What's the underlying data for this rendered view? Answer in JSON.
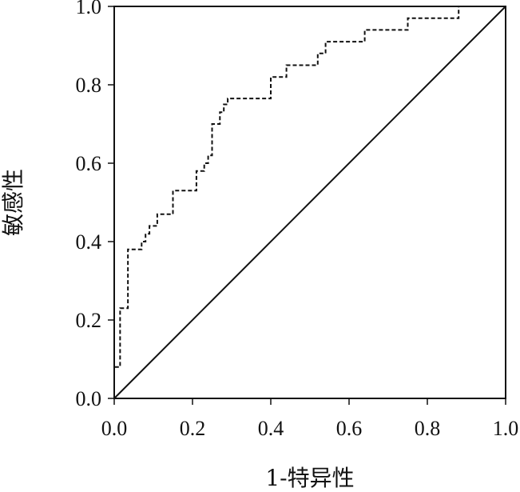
{
  "chart_data": {
    "type": "line",
    "title": "",
    "xlabel": "1-特异性",
    "ylabel": "敏感性",
    "xlim": [
      0,
      1
    ],
    "ylim": [
      0,
      1
    ],
    "grid": false,
    "legend": "none",
    "x_ticks": [
      "0.0",
      "0.2",
      "0.4",
      "0.6",
      "0.8",
      "1.0"
    ],
    "y_ticks": [
      "0.0",
      "0.2",
      "0.4",
      "0.6",
      "0.8",
      "1.0"
    ],
    "series": [
      {
        "style": "dashed",
        "color": "#111111",
        "points": [
          [
            0.0,
            0.0
          ],
          [
            0.0,
            0.08
          ],
          [
            0.015,
            0.08
          ],
          [
            0.015,
            0.23
          ],
          [
            0.035,
            0.23
          ],
          [
            0.035,
            0.38
          ],
          [
            0.07,
            0.38
          ],
          [
            0.07,
            0.4
          ],
          [
            0.08,
            0.4
          ],
          [
            0.08,
            0.42
          ],
          [
            0.09,
            0.42
          ],
          [
            0.09,
            0.44
          ],
          [
            0.11,
            0.44
          ],
          [
            0.11,
            0.47
          ],
          [
            0.15,
            0.47
          ],
          [
            0.15,
            0.53
          ],
          [
            0.21,
            0.53
          ],
          [
            0.21,
            0.58
          ],
          [
            0.23,
            0.58
          ],
          [
            0.23,
            0.6
          ],
          [
            0.24,
            0.6
          ],
          [
            0.24,
            0.62
          ],
          [
            0.25,
            0.62
          ],
          [
            0.25,
            0.7
          ],
          [
            0.27,
            0.7
          ],
          [
            0.27,
            0.73
          ],
          [
            0.28,
            0.73
          ],
          [
            0.28,
            0.75
          ],
          [
            0.29,
            0.75
          ],
          [
            0.29,
            0.765
          ],
          [
            0.4,
            0.765
          ],
          [
            0.4,
            0.82
          ],
          [
            0.44,
            0.82
          ],
          [
            0.44,
            0.85
          ],
          [
            0.52,
            0.85
          ],
          [
            0.52,
            0.88
          ],
          [
            0.54,
            0.88
          ],
          [
            0.54,
            0.91
          ],
          [
            0.64,
            0.91
          ],
          [
            0.64,
            0.94
          ],
          [
            0.75,
            0.94
          ],
          [
            0.75,
            0.97
          ],
          [
            0.88,
            0.97
          ],
          [
            0.88,
            1.0
          ],
          [
            1.0,
            1.0
          ]
        ]
      },
      {
        "style": "solid",
        "color": "#111111",
        "points": [
          [
            0,
            0
          ],
          [
            1,
            1
          ]
        ]
      }
    ]
  }
}
